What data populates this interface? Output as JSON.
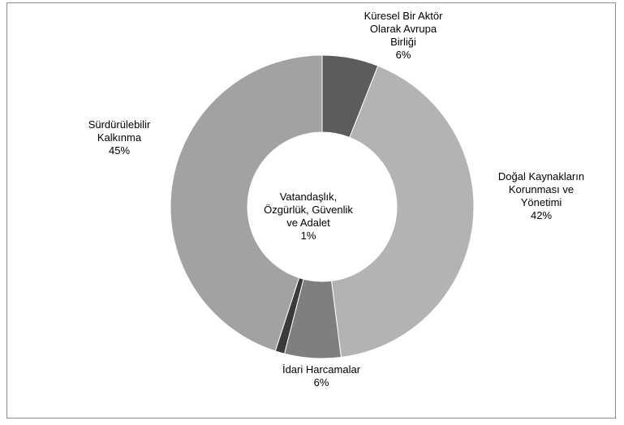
{
  "chart_data": {
    "type": "pie",
    "variant": "donut",
    "title": "",
    "legend": "none",
    "categories": [
      "Küresel Bir Aktör Olarak Avrupa Birliği",
      "Doğal Kaynakların Korunması ve Yönetimi",
      "İdari Harcamalar",
      "Vatandaşlık, Özgürlük, Güvenlik ve Adalet",
      "Sürdürülebilir Kalkınma"
    ],
    "values": [
      6,
      42,
      6,
      1,
      45
    ],
    "colors": [
      "#5c5c5c",
      "#b3b3b3",
      "#7f7f7f",
      "#3a3a3a",
      "#a2a2a2"
    ],
    "labels": [
      {
        "lines": [
          "Küresel Bir Aktör",
          "Olarak Avrupa",
          "Birliği"
        ],
        "pct": "6%"
      },
      {
        "lines": [
          "Doğal Kaynakların",
          "Korunması ve",
          "Yönetimi"
        ],
        "pct": "42%"
      },
      {
        "lines": [
          "İdari Harcamalar"
        ],
        "pct": "6%"
      },
      {
        "lines": [
          "Vatandaşlık,",
          "Özgürlük, Güvenlik",
          "ve Adalet"
        ],
        "pct": "1%"
      },
      {
        "lines": [
          "Sürdürülebilir",
          "Kalkınma"
        ],
        "pct": "45%"
      }
    ]
  }
}
